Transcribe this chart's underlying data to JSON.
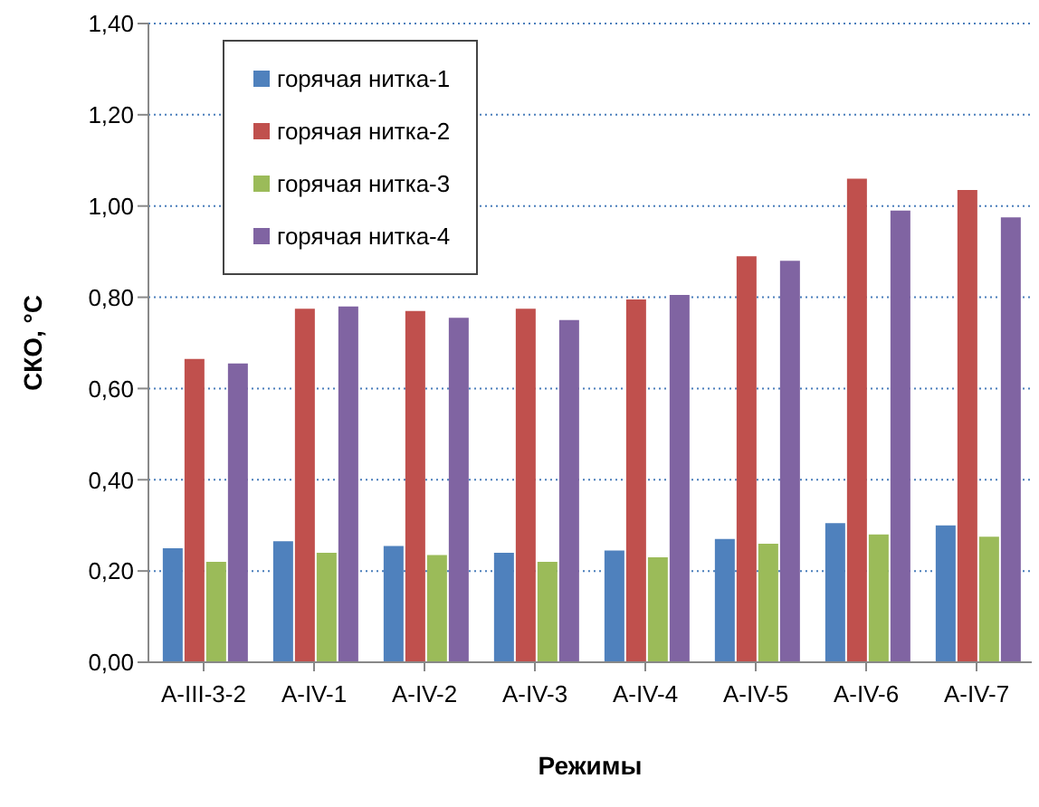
{
  "chart_data": {
    "type": "bar",
    "xlabel": "Режимы",
    "ylabel": "СКО, °С",
    "categories": [
      "A-III-3-2",
      "A-IV-1",
      "A-IV-2",
      "A-IV-3",
      "A-IV-4",
      "A-IV-5",
      "A-IV-6",
      "A-IV-7"
    ],
    "series": [
      {
        "name": "горячая нитка-1",
        "color": "#4f81bd",
        "values": [
          0.25,
          0.265,
          0.255,
          0.24,
          0.245,
          0.27,
          0.305,
          0.3
        ]
      },
      {
        "name": "горячая нитка-2",
        "color": "#c0504d",
        "values": [
          0.665,
          0.775,
          0.77,
          0.775,
          0.795,
          0.89,
          1.06,
          1.035
        ]
      },
      {
        "name": "горячая нитка-3",
        "color": "#9bbb59",
        "values": [
          0.22,
          0.24,
          0.235,
          0.22,
          0.23,
          0.26,
          0.28,
          0.275
        ]
      },
      {
        "name": "горячая нитка-4",
        "color": "#8064a2",
        "values": [
          0.655,
          0.78,
          0.755,
          0.75,
          0.805,
          0.88,
          0.99,
          0.975
        ]
      }
    ],
    "ylim": [
      0,
      1.4
    ],
    "yticks": [
      {
        "value": 0,
        "label": "0,00"
      },
      {
        "value": 0.2,
        "label": "0,20"
      },
      {
        "value": 0.4,
        "label": "0,40"
      },
      {
        "value": 0.6,
        "label": "0,60"
      },
      {
        "value": 0.8,
        "label": "0,80"
      },
      {
        "value": 1,
        "label": "1,00"
      },
      {
        "value": 1.2,
        "label": "1,20"
      },
      {
        "value": 1.4,
        "label": "1,40"
      }
    ],
    "grid": "y",
    "legend": "top left"
  }
}
